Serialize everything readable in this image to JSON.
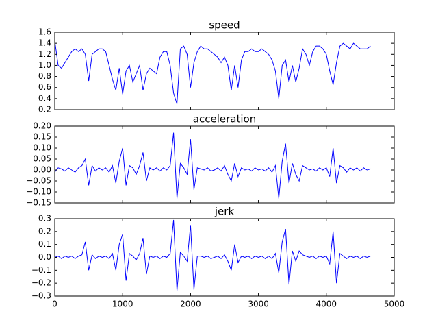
{
  "chart_data": [
    {
      "type": "line",
      "title": "speed",
      "color": "#0000ff",
      "x": [
        0,
        50,
        100,
        150,
        200,
        250,
        300,
        350,
        400,
        450,
        500,
        550,
        600,
        650,
        700,
        750,
        800,
        850,
        900,
        950,
        1000,
        1050,
        1100,
        1150,
        1200,
        1250,
        1300,
        1350,
        1400,
        1450,
        1500,
        1550,
        1600,
        1650,
        1700,
        1750,
        1800,
        1850,
        1900,
        1950,
        2000,
        2050,
        2100,
        2150,
        2200,
        2250,
        2300,
        2350,
        2400,
        2450,
        2500,
        2550,
        2600,
        2650,
        2700,
        2750,
        2800,
        2850,
        2900,
        2950,
        3000,
        3050,
        3100,
        3150,
        3200,
        3250,
        3300,
        3350,
        3400,
        3450,
        3500,
        3550,
        3600,
        3650,
        3700,
        3750,
        3800,
        3850,
        3900,
        3950,
        4000,
        4050,
        4100,
        4150,
        4200,
        4250,
        4300,
        4350,
        4400,
        4450,
        4500,
        4550,
        4600,
        4650
      ],
      "values": [
        1.45,
        1.0,
        0.95,
        1.05,
        1.15,
        1.25,
        1.3,
        1.25,
        1.3,
        1.2,
        0.72,
        1.2,
        1.25,
        1.3,
        1.3,
        1.25,
        1.0,
        0.75,
        0.55,
        0.95,
        0.48,
        0.9,
        1.0,
        0.7,
        0.85,
        1.0,
        0.55,
        0.85,
        0.95,
        0.9,
        0.85,
        1.15,
        1.25,
        1.25,
        1.0,
        0.5,
        0.3,
        1.3,
        1.35,
        1.2,
        0.6,
        1.05,
        1.25,
        1.35,
        1.3,
        1.3,
        1.25,
        1.2,
        1.15,
        1.05,
        1.15,
        1.0,
        0.55,
        1.0,
        0.6,
        1.1,
        1.25,
        1.25,
        1.3,
        1.25,
        1.25,
        1.3,
        1.25,
        1.2,
        1.1,
        0.9,
        0.4,
        1.0,
        1.1,
        0.7,
        1.0,
        0.7,
        0.95,
        1.3,
        1.2,
        1.0,
        1.25,
        1.35,
        1.35,
        1.3,
        1.2,
        0.9,
        0.65,
        1.05,
        1.35,
        1.4,
        1.35,
        1.3,
        1.4,
        1.35,
        1.3,
        1.3,
        1.3,
        1.35
      ],
      "xlim": [
        0,
        5000
      ],
      "xticks": [
        0,
        1000,
        2000,
        3000,
        4000,
        5000
      ],
      "ylim": [
        0.2,
        1.6
      ],
      "yticks": [
        0.2,
        0.4,
        0.6,
        0.8,
        {
          "value": 1,
          "label": "1.0"
        },
        1.2,
        1.4,
        1.6
      ]
    },
    {
      "type": "line",
      "title": "acceleration",
      "color": "#0000ff",
      "x": [
        0,
        50,
        100,
        150,
        200,
        250,
        300,
        350,
        400,
        450,
        500,
        550,
        600,
        650,
        700,
        750,
        800,
        850,
        900,
        950,
        1000,
        1050,
        1100,
        1150,
        1200,
        1250,
        1300,
        1350,
        1400,
        1450,
        1500,
        1550,
        1600,
        1650,
        1700,
        1750,
        1800,
        1850,
        1900,
        1950,
        2000,
        2050,
        2100,
        2150,
        2200,
        2250,
        2300,
        2350,
        2400,
        2450,
        2500,
        2550,
        2600,
        2650,
        2700,
        2750,
        2800,
        2850,
        2900,
        2950,
        3000,
        3050,
        3100,
        3150,
        3200,
        3250,
        3300,
        3350,
        3400,
        3450,
        3500,
        3550,
        3600,
        3650,
        3700,
        3750,
        3800,
        3850,
        3900,
        3950,
        4000,
        4050,
        4100,
        4150,
        4200,
        4250,
        4300,
        4350,
        4400,
        4450,
        4500,
        4550,
        4600,
        4650
      ],
      "values": [
        -0.01,
        0.01,
        0.005,
        -0.005,
        0.01,
        0.0,
        -0.01,
        0.01,
        0.02,
        0.05,
        -0.07,
        0.02,
        -0.005,
        0.01,
        0.0,
        0.01,
        -0.01,
        0.02,
        -0.06,
        0.04,
        0.1,
        -0.07,
        0.02,
        0.01,
        -0.02,
        0.02,
        0.08,
        -0.05,
        0.01,
        0.0,
        0.01,
        -0.005,
        0.01,
        0.0,
        0.02,
        0.17,
        -0.13,
        0.03,
        0.01,
        -0.02,
        0.14,
        -0.09,
        0.01,
        0.005,
        0.0,
        0.01,
        -0.005,
        0.0,
        0.01,
        -0.005,
        0.02,
        -0.02,
        -0.05,
        0.03,
        -0.03,
        0.01,
        0.0,
        0.005,
        -0.005,
        0.01,
        0.0,
        0.005,
        -0.005,
        0.01,
        -0.01,
        0.02,
        -0.13,
        0.04,
        0.12,
        -0.06,
        0.03,
        -0.02,
        -0.05,
        0.02,
        0.01,
        0.0,
        0.005,
        -0.005,
        0.01,
        0.0,
        0.01,
        -0.03,
        0.1,
        -0.06,
        0.02,
        0.01,
        -0.01,
        0.01,
        0.0,
        0.01,
        -0.005,
        0.01,
        0.0,
        0.005
      ],
      "xlim": [
        0,
        5000
      ],
      "xticks": [
        0,
        1000,
        2000,
        3000,
        4000,
        5000
      ],
      "ylim": [
        -0.15,
        0.2
      ],
      "yticks": [
        {
          "value": -0.15,
          "label": "−0.15"
        },
        {
          "value": -0.1,
          "label": "−0.10"
        },
        {
          "value": -0.05,
          "label": "−0.05"
        },
        {
          "value": 0,
          "label": "0.00"
        },
        0.05,
        {
          "value": 0.1,
          "label": "0.10"
        },
        0.15,
        {
          "value": 0.2,
          "label": "0.20"
        }
      ]
    },
    {
      "type": "line",
      "title": "jerk",
      "color": "#0000ff",
      "x": [
        0,
        50,
        100,
        150,
        200,
        250,
        300,
        350,
        400,
        450,
        500,
        550,
        600,
        650,
        700,
        750,
        800,
        850,
        900,
        950,
        1000,
        1050,
        1100,
        1150,
        1200,
        1250,
        1300,
        1350,
        1400,
        1450,
        1500,
        1550,
        1600,
        1650,
        1700,
        1750,
        1800,
        1850,
        1900,
        1950,
        2000,
        2050,
        2100,
        2150,
        2200,
        2250,
        2300,
        2350,
        2400,
        2450,
        2500,
        2550,
        2600,
        2650,
        2700,
        2750,
        2800,
        2850,
        2900,
        2950,
        3000,
        3050,
        3100,
        3150,
        3200,
        3250,
        3300,
        3350,
        3400,
        3450,
        3500,
        3550,
        3600,
        3650,
        3700,
        3750,
        3800,
        3850,
        3900,
        3950,
        4000,
        4050,
        4100,
        4150,
        4200,
        4250,
        4300,
        4350,
        4400,
        4450,
        4500,
        4550,
        4600,
        4650
      ],
      "values": [
        0.0,
        0.01,
        -0.01,
        0.01,
        0.0,
        0.01,
        -0.01,
        0.01,
        0.02,
        0.12,
        -0.1,
        0.02,
        -0.01,
        0.01,
        0.0,
        0.01,
        -0.01,
        0.03,
        -0.1,
        0.1,
        0.18,
        -0.18,
        0.03,
        0.01,
        -0.02,
        0.03,
        0.15,
        -0.13,
        0.01,
        0.0,
        0.01,
        -0.01,
        0.01,
        0.0,
        0.03,
        0.29,
        -0.26,
        0.04,
        0.01,
        -0.03,
        0.25,
        -0.25,
        0.01,
        0.01,
        0.0,
        0.01,
        -0.01,
        0.0,
        0.01,
        -0.01,
        0.02,
        -0.03,
        -0.1,
        0.1,
        -0.04,
        0.01,
        0.0,
        0.01,
        -0.01,
        0.01,
        0.0,
        0.01,
        -0.01,
        0.01,
        -0.01,
        0.03,
        -0.12,
        0.12,
        0.22,
        -0.21,
        0.05,
        -0.03,
        0.05,
        0.02,
        0.01,
        0.0,
        0.01,
        -0.01,
        0.01,
        0.0,
        0.01,
        -0.05,
        0.2,
        -0.2,
        0.03,
        0.01,
        -0.01,
        0.01,
        0.0,
        0.01,
        -0.01,
        0.01,
        0.0,
        0.01
      ],
      "xlim": [
        0,
        5000
      ],
      "xticks": [
        0,
        1000,
        2000,
        3000,
        4000,
        5000
      ],
      "ylim": [
        -0.3,
        0.3
      ],
      "yticks": [
        {
          "value": -0.3,
          "label": "−0.3"
        },
        {
          "value": -0.2,
          "label": "−0.2"
        },
        {
          "value": -0.1,
          "label": "−0.1"
        },
        {
          "value": 0,
          "label": "0.0"
        },
        0.1,
        0.2,
        0.3
      ]
    }
  ]
}
